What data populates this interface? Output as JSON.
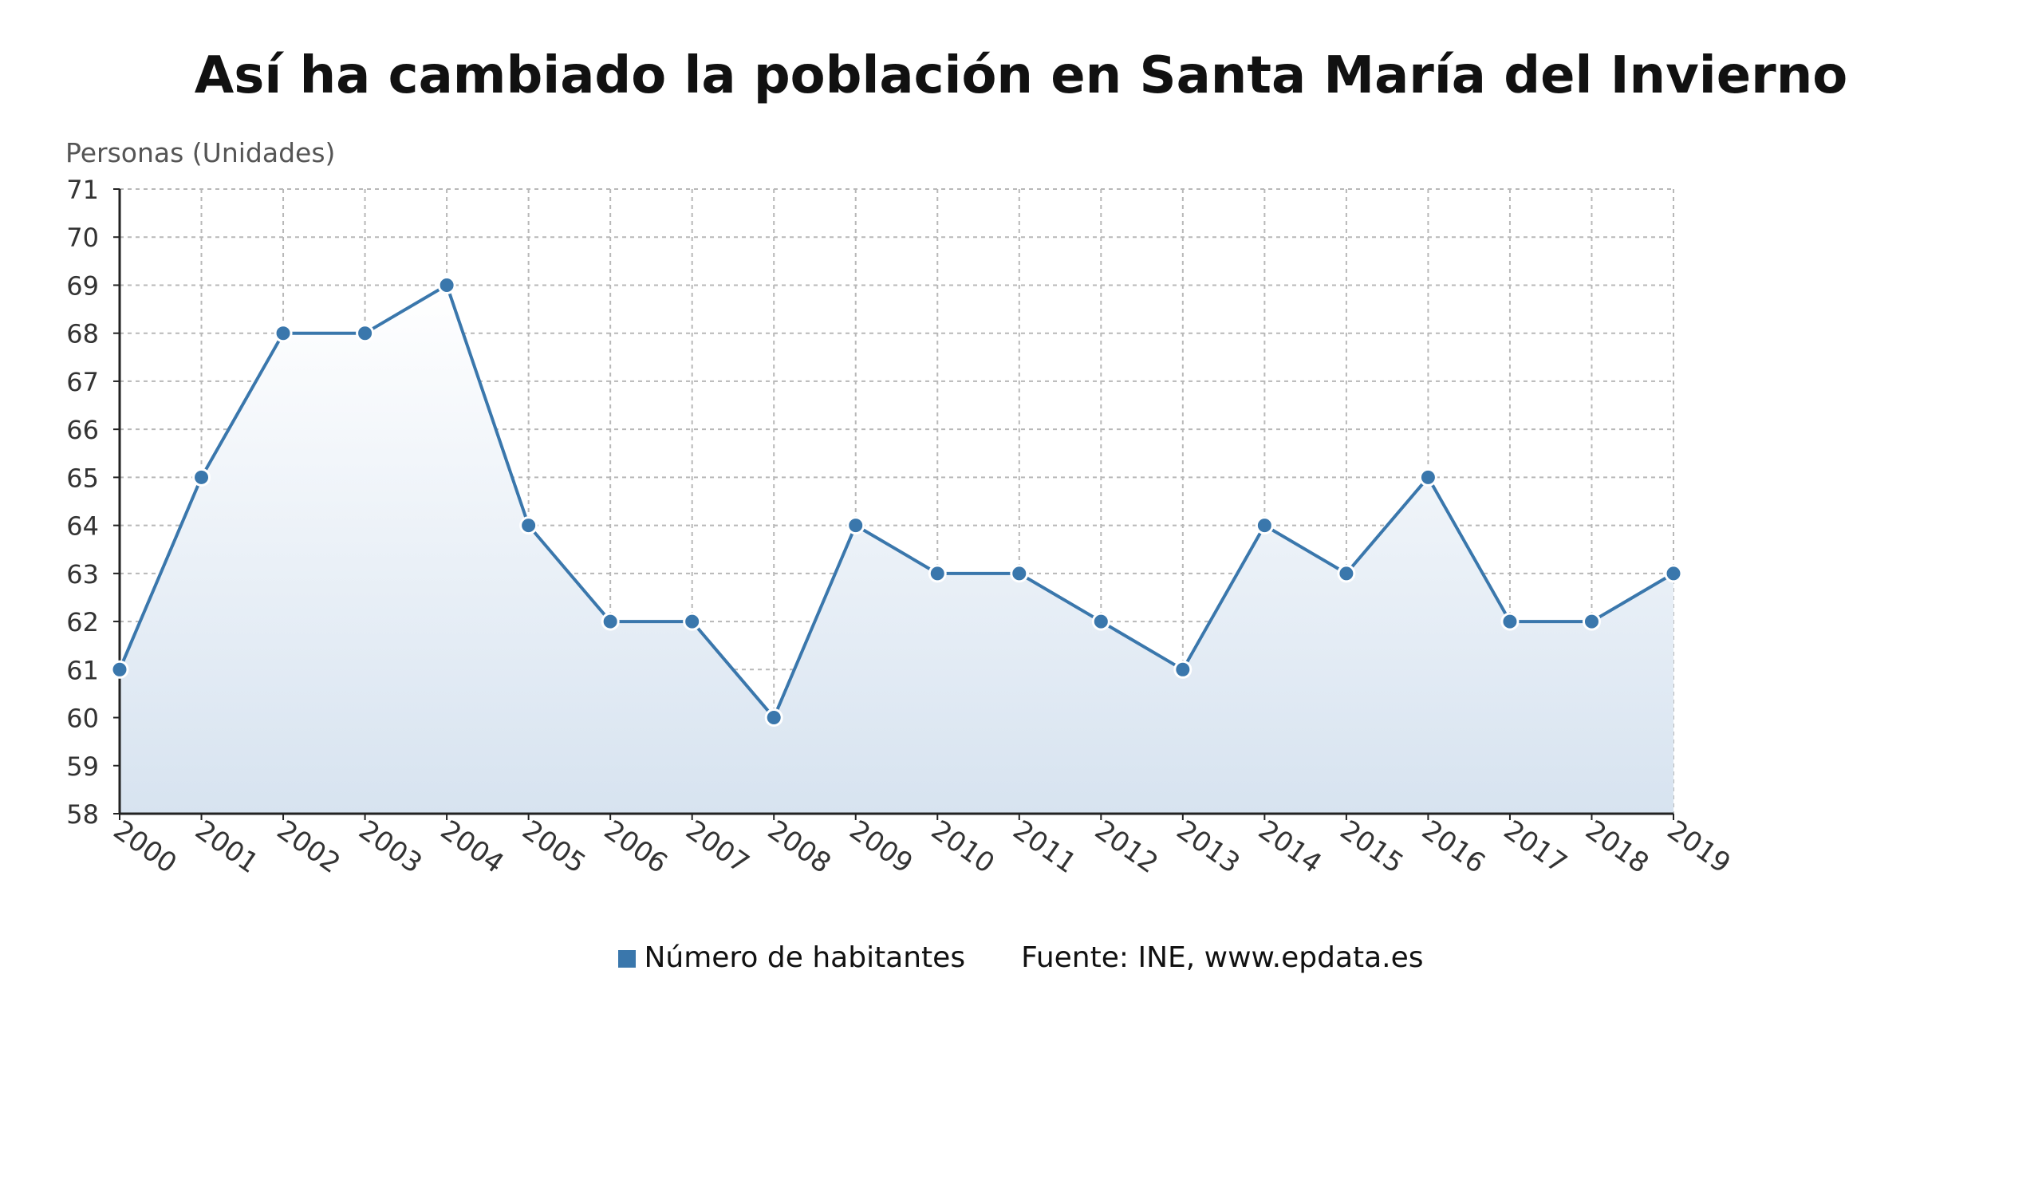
{
  "chart_data": {
    "type": "area",
    "title": "Así ha cambiado la población en Santa María del Invierno",
    "ylabel": "Personas (Unidades)",
    "xlabel": "",
    "ylim": [
      58,
      71
    ],
    "grid": true,
    "legend_position": "bottom-center",
    "x": [
      "2000",
      "2001",
      "2002",
      "2003",
      "2004",
      "2005",
      "2006",
      "2007",
      "2008",
      "2009",
      "2010",
      "2011",
      "2012",
      "2013",
      "2014",
      "2015",
      "2016",
      "2017",
      "2018",
      "2019"
    ],
    "series": [
      {
        "name": "Número de habitantes",
        "color": "#3a77ac",
        "values": [
          61,
          65,
          68,
          68,
          69,
          64,
          62,
          62,
          60,
          64,
          63,
          63,
          62,
          61,
          64,
          63,
          65,
          62,
          62,
          63
        ]
      }
    ],
    "source": "Fuente: INE, www.epdata.es"
  }
}
